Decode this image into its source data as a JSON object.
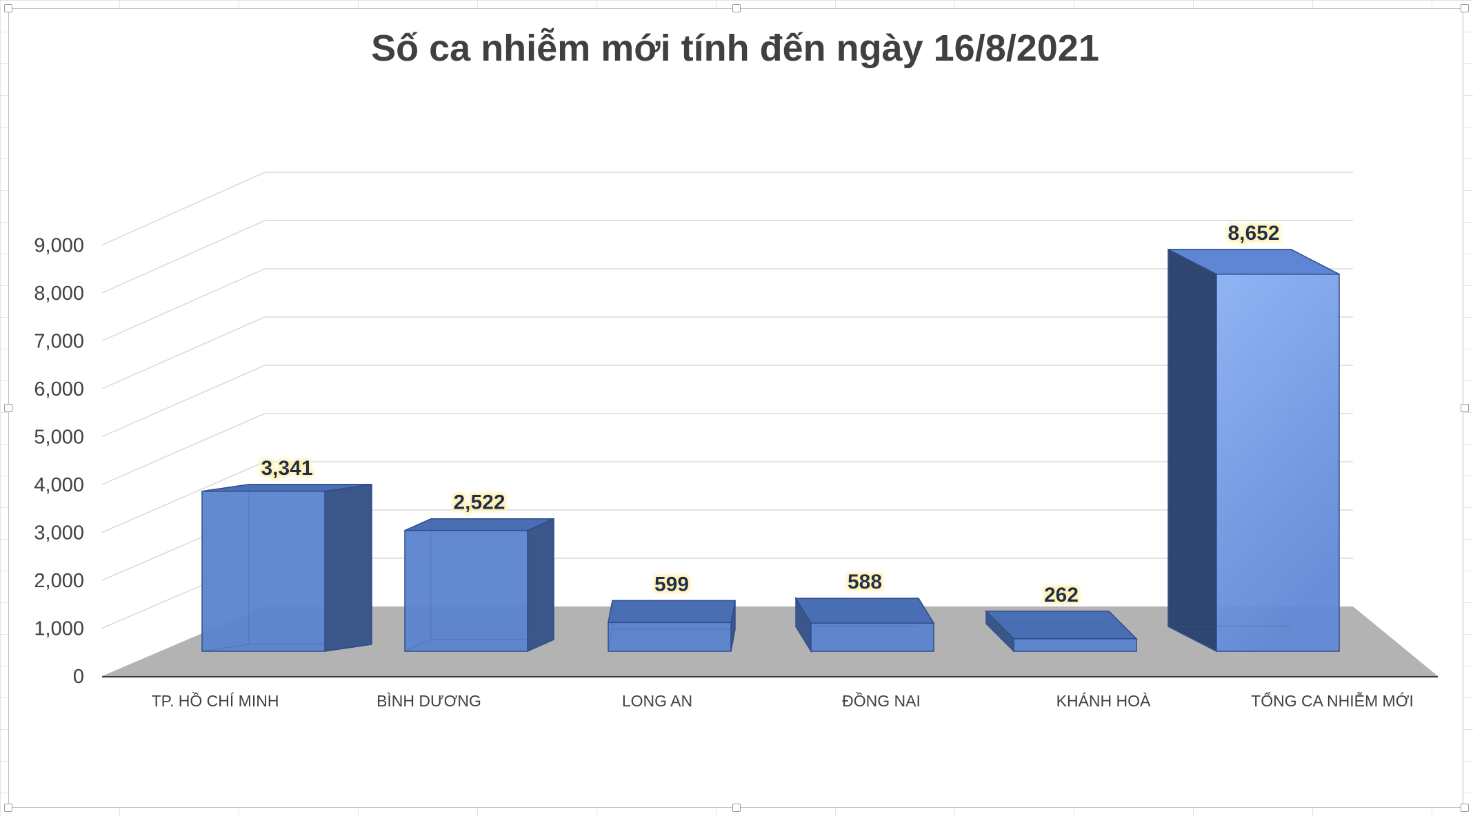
{
  "chart_data": {
    "type": "bar",
    "title": "Số ca nhiễm mới tính đến ngày 16/8/2021",
    "xlabel": "",
    "ylabel": "",
    "categories": [
      "TP. HỒ CHÍ MINH",
      "BÌNH DƯƠNG",
      "LONG AN",
      "ĐỒNG NAI",
      "KHÁNH HOÀ",
      "TỔNG CA NHIỄM MỚI"
    ],
    "values": [
      3341,
      2522,
      599,
      588,
      262,
      8652
    ],
    "data_labels": [
      "3,341",
      "2,522",
      "599",
      "588",
      "262",
      "8,652"
    ],
    "y_ticks": [
      "0",
      "1,000",
      "2,000",
      "3,000",
      "4,000",
      "5,000",
      "6,000",
      "7,000",
      "8,000",
      "9,000"
    ],
    "ylim": [
      0,
      9000
    ],
    "grid": true,
    "legend": "none",
    "style": "3d-column",
    "colors": {
      "bar_front": "#5b84cf",
      "bar_top": "#4a6eb3",
      "bar_side": "#3b5689",
      "bar_edge": "#2f4c8c",
      "floor": "#b3b3b3",
      "gridline": "#d9d9d9",
      "label_glow": "#fff1b3"
    }
  }
}
